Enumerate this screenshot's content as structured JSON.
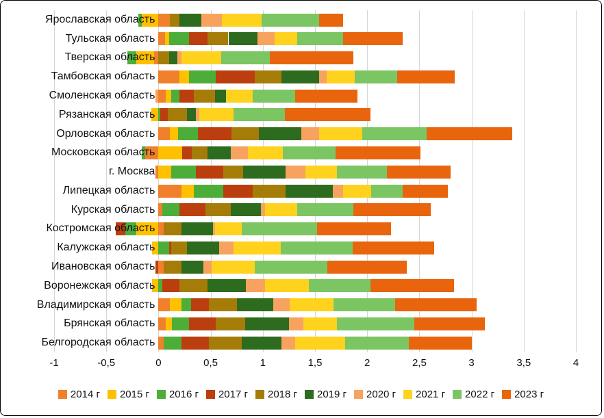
{
  "chart_data": {
    "type": "bar",
    "orientation": "horizontal",
    "stacked": true,
    "title": "",
    "xlabel": "",
    "ylabel": "",
    "grid": "vertical",
    "legend_position": "bottom",
    "xlim": [
      -1,
      4
    ],
    "xticks": [
      -1,
      -0.5,
      0,
      0.5,
      1,
      1.5,
      2,
      2.5,
      3,
      3.5,
      4
    ],
    "xtick_labels": [
      "-1",
      "-0,5",
      "0",
      "0,5",
      "1",
      "1,5",
      "2",
      "2,5",
      "3",
      "3,5",
      "4"
    ],
    "categories": [
      "Ярославская область",
      "Тульская область",
      "Тверская область",
      "Тамбовская область",
      "Смоленская область",
      "Рязанская область",
      "Орловская область",
      "Московская область",
      "г. Москва",
      "Липецкая область",
      "Курская область",
      "Костромская область",
      "Калужская область",
      "Ивановская область",
      "Воронежская область",
      "Владимирская область",
      "Брянская область",
      "Белгородская область"
    ],
    "series": [
      {
        "name": "2014 г",
        "color": "#F0802C",
        "values": [
          0.11,
          0.06,
          -0.04,
          0.2,
          0.07,
          0,
          0.11,
          -0.13,
          -0.03,
          0.22,
          0.04,
          0.05,
          0,
          0.05,
          0,
          0.11,
          0.07,
          0.05
        ]
      },
      {
        "name": "2015 г",
        "color": "#FFC000",
        "values": [
          -0.16,
          0.04,
          -0.17,
          0.09,
          0.05,
          -0.07,
          0.08,
          0.23,
          0.12,
          0.12,
          0,
          -0.21,
          -0.06,
          0,
          -0.06,
          0.11,
          0.06,
          0
        ]
      },
      {
        "name": "2016 г",
        "color": "#4CAE39",
        "values": [
          -0.03,
          0.19,
          -0.09,
          0.26,
          0.08,
          0.02,
          0.19,
          -0.03,
          0.24,
          0.28,
          0.16,
          -0.11,
          0.1,
          0,
          0.04,
          0.09,
          0.16,
          0.17
        ]
      },
      {
        "name": "2017 г",
        "color": "#BB3E0F",
        "values": [
          0,
          0.18,
          0,
          0.37,
          0.14,
          0.07,
          0.32,
          0.09,
          0.26,
          0.28,
          0.25,
          -0.09,
          0.02,
          -0.03,
          0.16,
          0.17,
          0.26,
          0.26
        ]
      },
      {
        "name": "2018 г",
        "color": "#A67C09",
        "values": [
          0.09,
          0.2,
          0.1,
          0.26,
          0.2,
          0.18,
          0.26,
          0.15,
          0.19,
          0.32,
          0.24,
          0.17,
          0.15,
          0.17,
          0.27,
          0.27,
          0.28,
          0.32
        ]
      },
      {
        "name": "2019 г",
        "color": "#2D6B1E",
        "values": [
          0.21,
          0.28,
          0.08,
          0.36,
          0.11,
          0.09,
          0.41,
          0.22,
          0.41,
          0.45,
          0.29,
          0.3,
          0.31,
          0.21,
          0.37,
          0.35,
          0.42,
          0.38
        ]
      },
      {
        "name": "2020 г",
        "color": "#F8A25F",
        "values": [
          0.2,
          0.16,
          0.04,
          0.07,
          -0.03,
          0.03,
          0.17,
          0.17,
          0.19,
          0.1,
          0.04,
          0.02,
          0.14,
          0.08,
          0.18,
          0.16,
          0.14,
          0.13
        ]
      },
      {
        "name": "2021 г",
        "color": "#FFD21D",
        "values": [
          0.38,
          0.22,
          0.38,
          0.27,
          0.25,
          0.33,
          0.41,
          0.33,
          0.3,
          0.27,
          0.31,
          0.26,
          0.45,
          0.41,
          0.42,
          0.42,
          0.32,
          0.48
        ]
      },
      {
        "name": "2022 г",
        "color": "#7BC563",
        "values": [
          0.55,
          0.44,
          0.47,
          0.41,
          0.41,
          0.49,
          0.62,
          0.51,
          0.48,
          0.3,
          0.54,
          0.72,
          0.69,
          0.7,
          0.59,
          0.59,
          0.74,
          0.61
        ]
      },
      {
        "name": "2023 г",
        "color": "#E8650D",
        "values": [
          0.23,
          0.57,
          0.8,
          0.55,
          0.6,
          0.82,
          0.82,
          0.81,
          0.61,
          0.43,
          0.74,
          0.71,
          0.78,
          0.76,
          0.8,
          0.78,
          0.68,
          0.6
        ]
      }
    ]
  }
}
